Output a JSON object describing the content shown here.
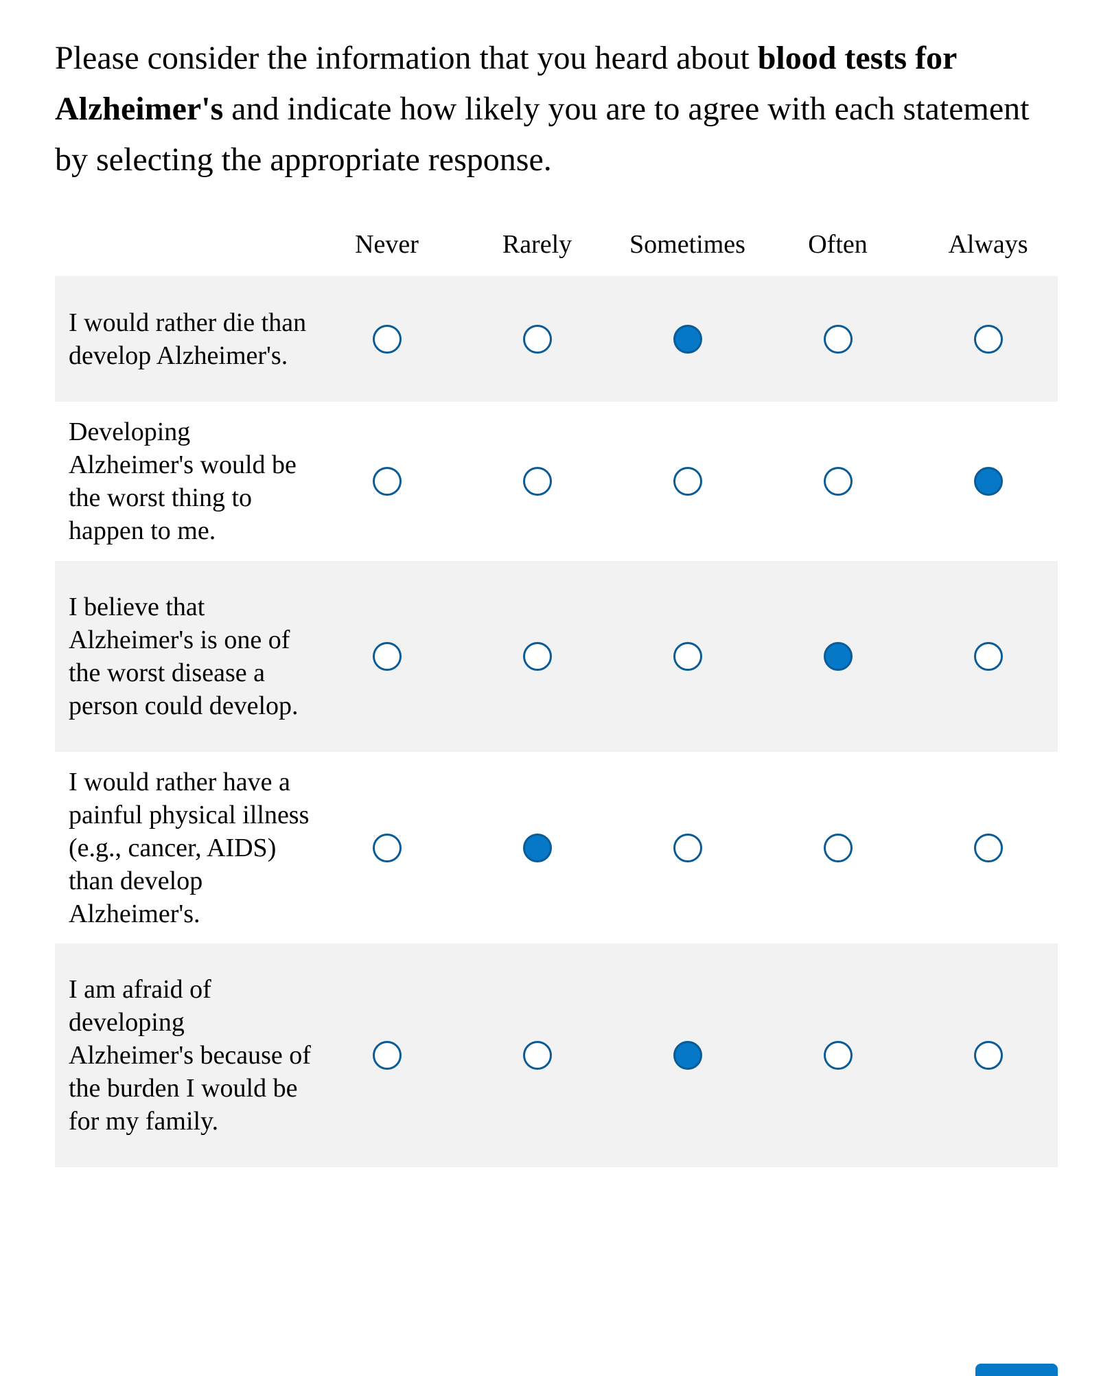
{
  "question": {
    "prefix": "Please consider the information that you heard about ",
    "bold": "blood tests for Alzheimer's",
    "suffix": " and indicate how likely you are to agree with each statement by selecting the appropriate response."
  },
  "scale": [
    "Never",
    "Rarely",
    "Sometimes",
    "Often",
    "Always"
  ],
  "statements": [
    {
      "text": "I would rather die than develop Alzheimer's.",
      "selected": "Sometimes"
    },
    {
      "text": "Developing Alzheimer's would be the worst thing to happen to me.",
      "selected": "Always"
    },
    {
      "text": "I believe that Alzheimer's is one of the worst disease a person could develop.",
      "selected": "Often"
    },
    {
      "text": "I would rather have a painful physical illness (e.g., cancer, AIDS) than develop Alzheimer's.",
      "selected": "Rarely"
    },
    {
      "text": "I am afraid of developing Alzheimer's because of the burden I would be for my family.",
      "selected": "Sometimes"
    }
  ],
  "colors": {
    "accent": "#0678c8",
    "radio_border": "#0b5c96",
    "shaded_row": "#f2f2f2"
  }
}
